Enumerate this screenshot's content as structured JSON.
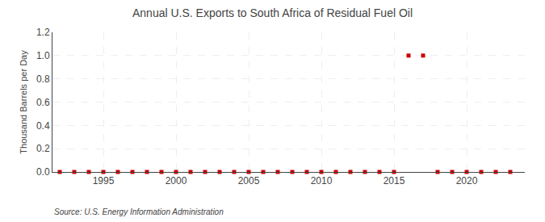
{
  "chart_data": {
    "type": "scatter",
    "title": "Annual U.S. Exports to South Africa of Residual Fuel Oil",
    "ylabel": "Thousand Barrels per Day",
    "annotations": [
      "Source: U.S. Energy Information Administration"
    ],
    "x": [
      1992,
      1993,
      1994,
      1995,
      1996,
      1997,
      1998,
      1999,
      2000,
      2001,
      2002,
      2003,
      2004,
      2005,
      2006,
      2007,
      2008,
      2009,
      2010,
      2011,
      2012,
      2013,
      2014,
      2015,
      2016,
      2017,
      2018,
      2019,
      2020,
      2021,
      2022,
      2023
    ],
    "values": [
      0,
      0,
      0,
      0,
      0,
      0,
      0,
      0,
      0,
      0,
      0,
      0,
      0,
      0,
      0,
      0,
      0,
      0,
      0,
      0,
      0,
      0,
      0,
      0,
      1.0,
      1.0,
      0,
      0,
      0,
      0,
      0,
      0
    ],
    "color": "#cc0000",
    "marker": "square",
    "xlim": [
      1991.5,
      2024
    ],
    "xticks": [
      1995,
      2000,
      2005,
      2010,
      2015,
      2020
    ],
    "ylim": [
      0,
      1.2
    ],
    "yticks": [
      {
        "value": 0,
        "label": "0.0"
      },
      0.2,
      0.4,
      0.6,
      0.8,
      {
        "value": 1,
        "label": "1.0"
      },
      1.2
    ],
    "grid": true
  }
}
